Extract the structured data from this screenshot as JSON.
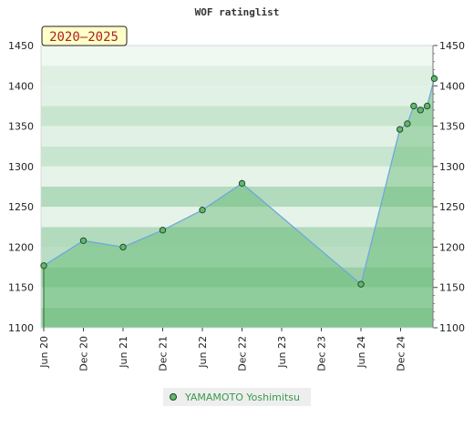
{
  "chart_data": {
    "type": "area",
    "title": "WOF ratinglist",
    "badge": "2020–2025",
    "xlabel": "",
    "ylabel": "",
    "ylim": [
      1100,
      1450
    ],
    "yticks": [
      1100,
      1150,
      1200,
      1250,
      1300,
      1350,
      1400,
      1450
    ],
    "x_tick_labels": [
      "Jun 20",
      "Dec 20",
      "Jun 21",
      "Dec 21",
      "Jun 22",
      "Dec 22",
      "Jun 23",
      "Dec 23",
      "Jun 24",
      "Dec 24"
    ],
    "grid": true,
    "legend_position": "bottom-center",
    "series": [
      {
        "name": "YAMAMOTO Yoshimitsu",
        "color": "#5fb86e",
        "line_color": "#6fa8dc",
        "points": [
          {
            "x": 0.0,
            "y": 1177
          },
          {
            "x": 1.0,
            "y": 1208
          },
          {
            "x": 2.0,
            "y": 1200
          },
          {
            "x": 3.0,
            "y": 1221
          },
          {
            "x": 4.0,
            "y": 1246
          },
          {
            "x": 5.0,
            "y": 1279
          },
          {
            "x": 8.0,
            "y": 1154
          },
          {
            "x": 8.98,
            "y": 1346
          },
          {
            "x": 9.17,
            "y": 1353
          },
          {
            "x": 9.33,
            "y": 1375
          },
          {
            "x": 9.5,
            "y": 1370
          },
          {
            "x": 9.67,
            "y": 1375
          },
          {
            "x": 9.85,
            "y": 1409
          }
        ]
      }
    ]
  }
}
